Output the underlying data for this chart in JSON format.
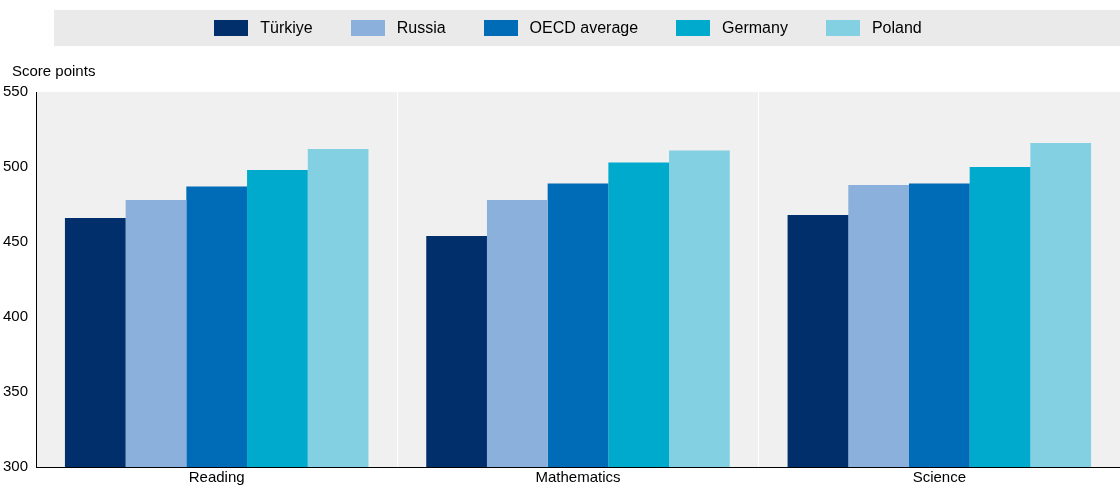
{
  "chart_data": {
    "type": "bar",
    "ylabel": "Score points",
    "categories": [
      "Reading",
      "Mathematics",
      "Science"
    ],
    "series": [
      {
        "name": "Türkiye",
        "color": "#002f6c",
        "values": [
          466,
          454,
          468
        ]
      },
      {
        "name": "Russia",
        "color": "#8cb0dc",
        "values": [
          478,
          478,
          488
        ]
      },
      {
        "name": "OECD average",
        "color": "#006bb6",
        "values": [
          487,
          489,
          489
        ]
      },
      {
        "name": "Germany",
        "color": "#00aacc",
        "values": [
          498,
          503,
          500
        ]
      },
      {
        "name": "Poland",
        "color": "#82d0e2",
        "values": [
          512,
          511,
          516
        ]
      }
    ],
    "ylim": [
      300,
      550
    ],
    "yticks": [
      300,
      350,
      400,
      450,
      500,
      550
    ],
    "grid": "x",
    "legend": "top"
  }
}
